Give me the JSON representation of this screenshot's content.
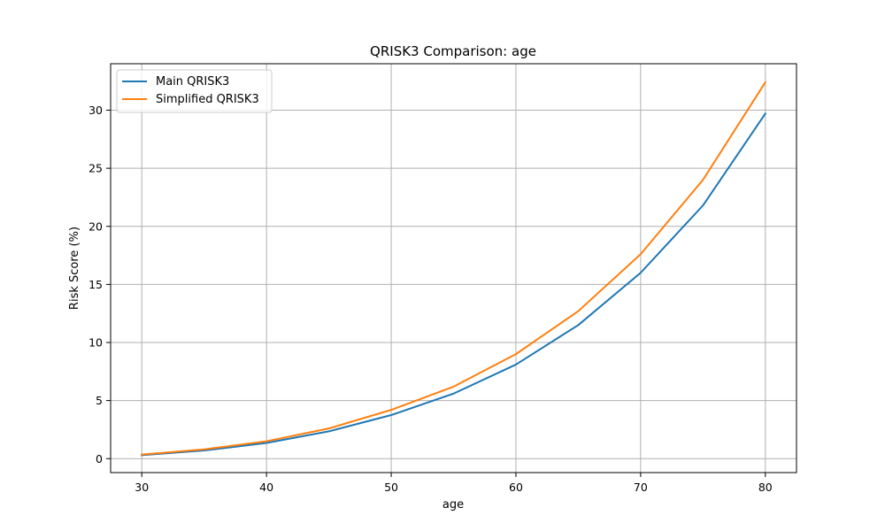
{
  "chart_data": {
    "type": "line",
    "title": "QRISK3 Comparison: age",
    "xlabel": "age",
    "ylabel": "Risk Score (%)",
    "x": [
      30,
      35,
      40,
      45,
      50,
      55,
      60,
      65,
      70,
      75,
      80
    ],
    "xlim": [
      27.5,
      82.5
    ],
    "ylim": [
      -1.2,
      34
    ],
    "xticks": [
      30,
      40,
      50,
      60,
      70,
      80
    ],
    "yticks": [
      0,
      5,
      10,
      15,
      20,
      25,
      30
    ],
    "grid": true,
    "legend_position": "top-left",
    "series": [
      {
        "name": "Main QRISK3",
        "color": "#1f77b4",
        "values": [
          0.3,
          0.7,
          1.35,
          2.35,
          3.75,
          5.6,
          8.1,
          11.5,
          16.0,
          21.8,
          29.7
        ]
      },
      {
        "name": "Simplified QRISK3",
        "color": "#ff7f0e",
        "values": [
          0.35,
          0.8,
          1.5,
          2.6,
          4.2,
          6.2,
          9.0,
          12.7,
          17.6,
          24.0,
          32.4
        ]
      }
    ]
  }
}
